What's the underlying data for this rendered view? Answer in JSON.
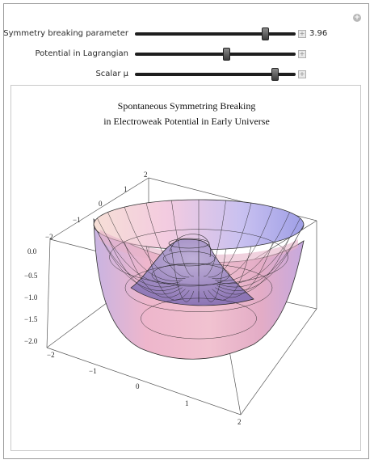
{
  "controls": [
    {
      "label": "Symmetry breaking parameter",
      "position": 0.81,
      "value_text": "3.96"
    },
    {
      "label": "Potential in Lagrangian",
      "position": 0.57,
      "value_text": ""
    },
    {
      "label": "Scalar μ",
      "position": 0.87,
      "value_text": ""
    }
  ],
  "plot": {
    "title_line1": "Spontaneous Symmetring Breaking",
    "title_line2": "in Electroweak Potential in Early Universe",
    "z_ticks": [
      "0.0",
      "−0.5",
      "−1.0",
      "−1.5",
      "−2.0"
    ],
    "x_ticks": [
      "−2",
      "−1",
      "0",
      "1",
      "2"
    ],
    "y_ticks": [
      "−2",
      "−1",
      "0",
      "1",
      "2"
    ]
  },
  "colors": {
    "surface_light": "#f2c8d8",
    "surface_blue": "#b8b4ee",
    "mesh": "#222222",
    "slider_track": "#1e1e1e"
  }
}
